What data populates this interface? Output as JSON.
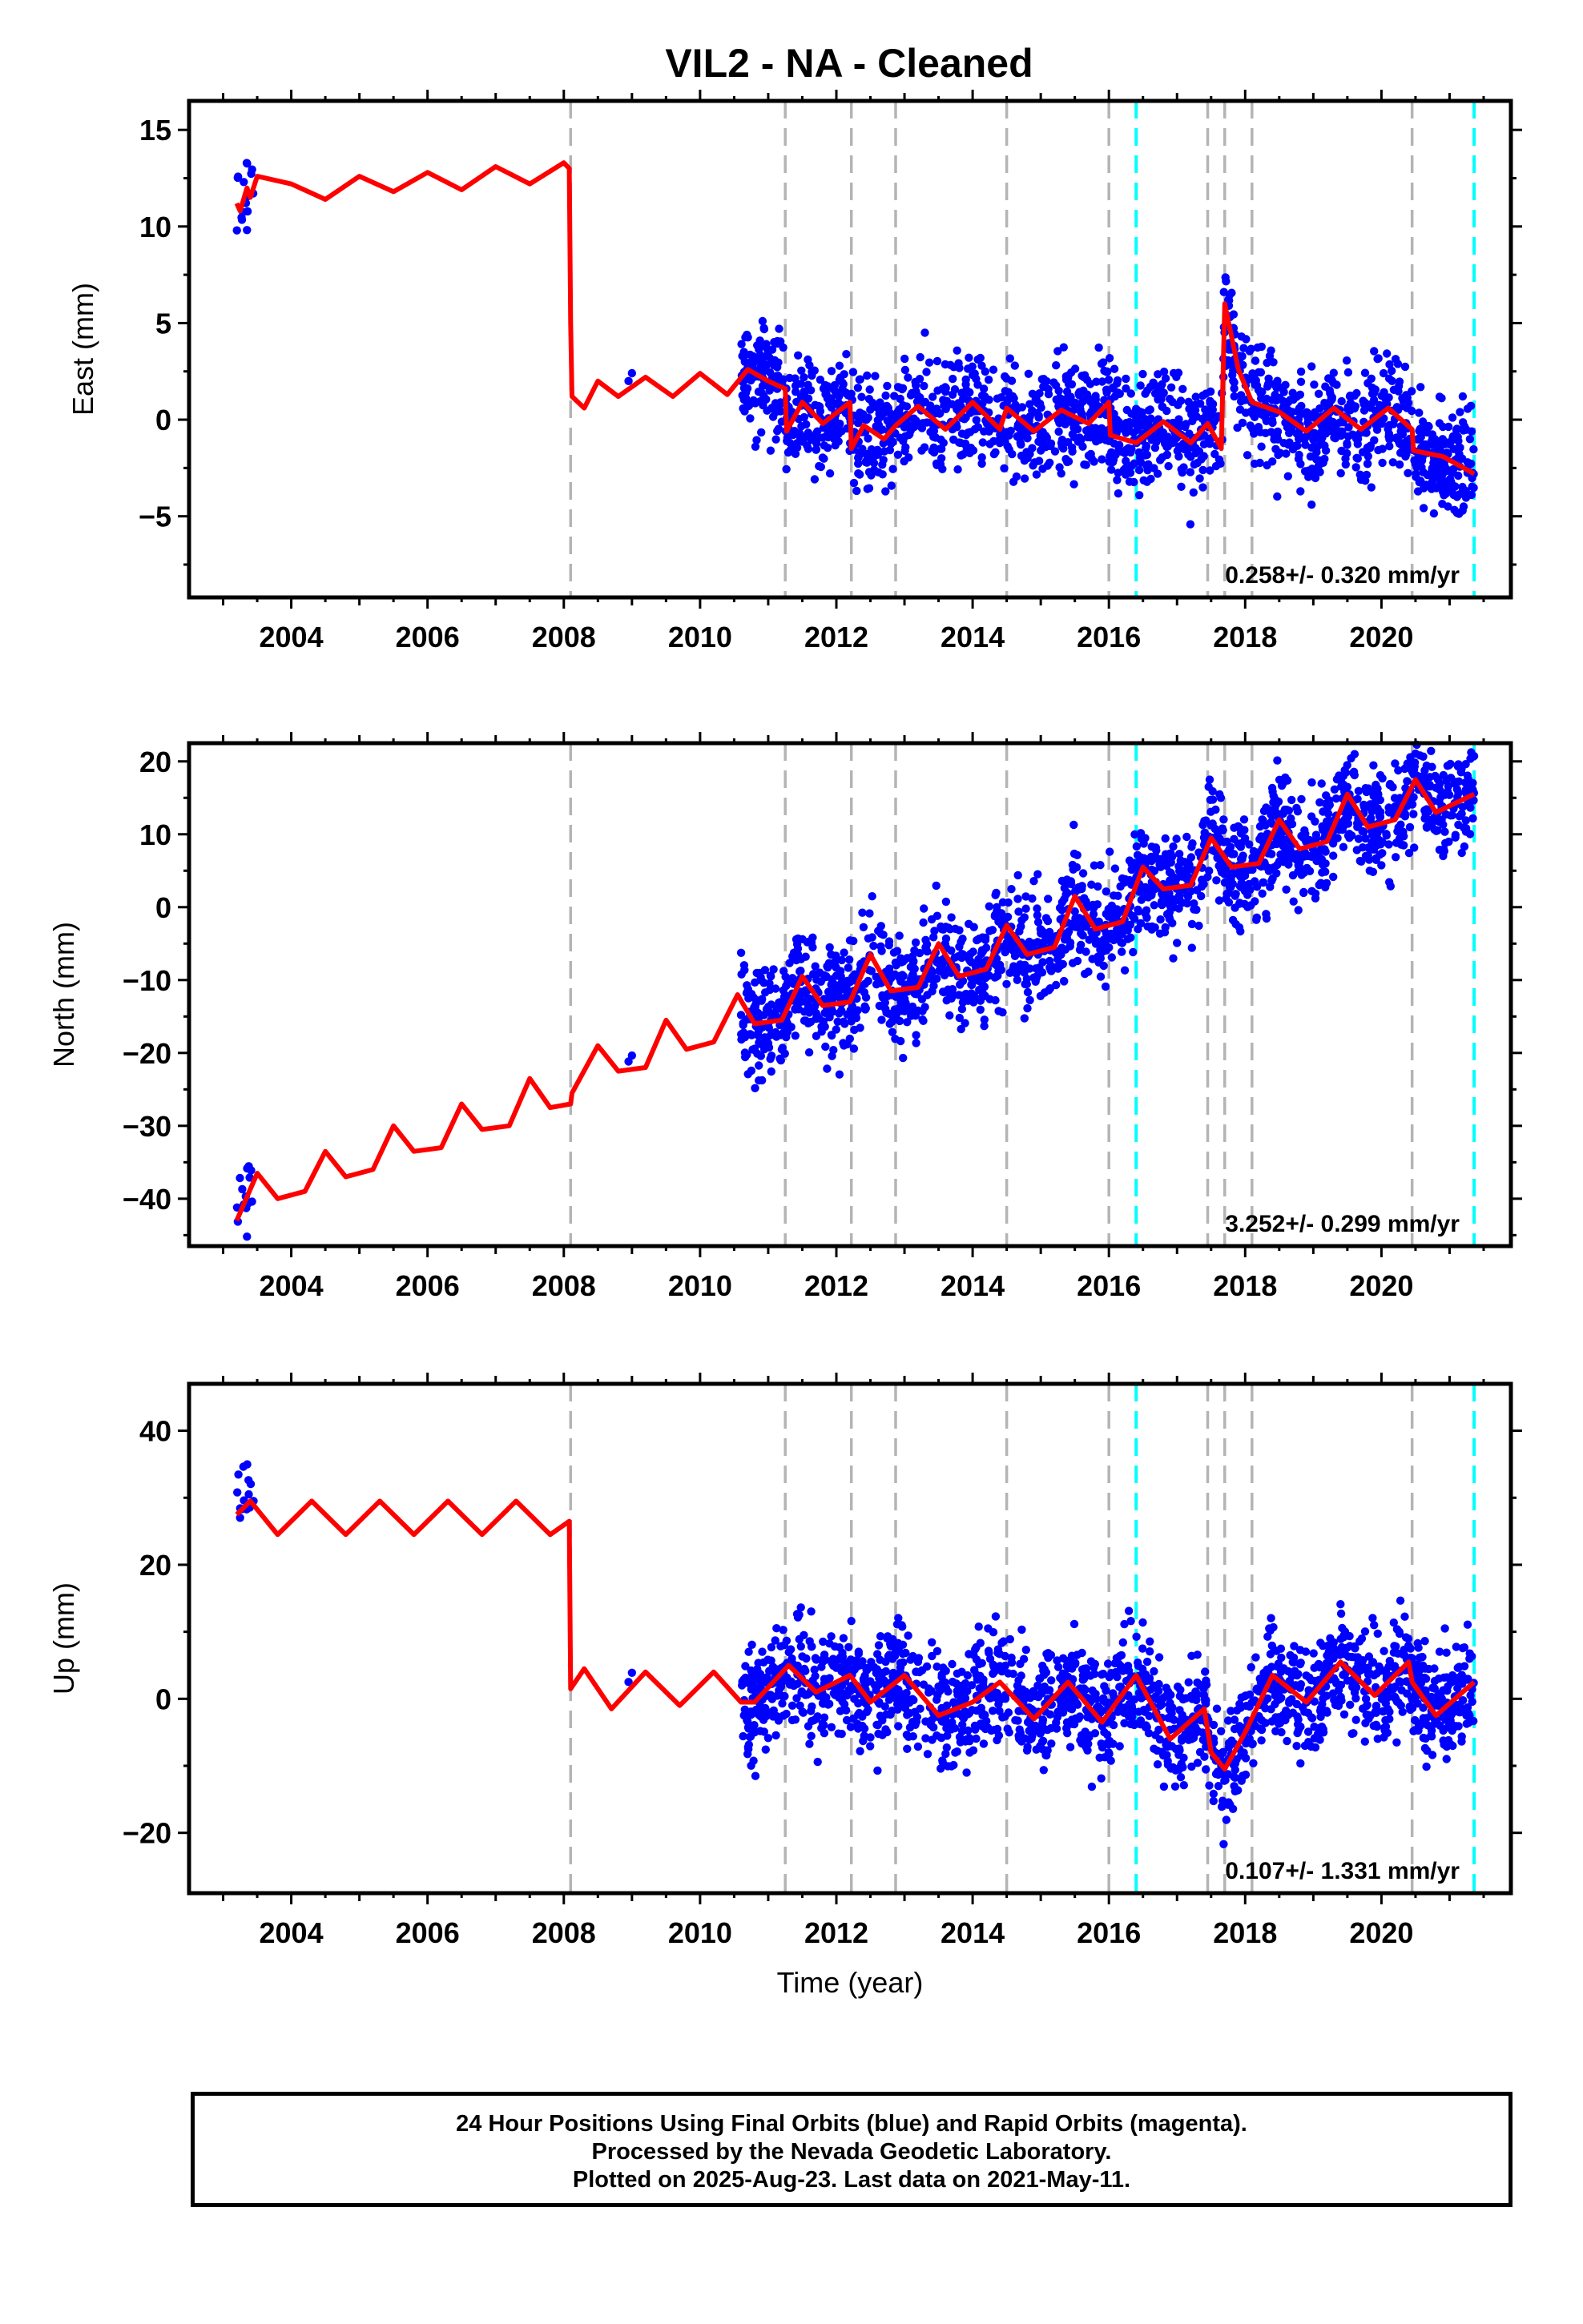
{
  "title": "VIL2  - NA - Cleaned",
  "colors": {
    "data_points": "#0000ff",
    "model_line": "#ff0000",
    "event_line_gray": "#b4b4b4",
    "event_line_cyan": "#00ffff",
    "frame": "#000000"
  },
  "footer": {
    "line1": "24 Hour Positions Using Final Orbits (blue) and Rapid Orbits (magenta).",
    "line2": "Processed by the Nevada Geodetic Laboratory.",
    "line3": "Plotted on 2025-Aug-23. Last data on 2021-May-11."
  },
  "chart_data": [
    {
      "type": "scatter",
      "panel": "east",
      "ylabel": "East (mm)",
      "xlabel": "",
      "xlim": [
        2002.5,
        2021.9
      ],
      "ylim": [
        -9.2,
        16.5
      ],
      "xticks": [
        2004,
        2006,
        2008,
        2010,
        2012,
        2014,
        2016,
        2018,
        2020
      ],
      "yticks": [
        -5,
        0,
        5,
        10,
        15
      ],
      "rate_text": "0.258+/- 0.320 mm/yr",
      "gray_event_lines": [
        2008.1,
        2011.25,
        2012.22,
        2012.87,
        2014.5,
        2016.0,
        2017.45,
        2017.7,
        2018.1,
        2020.45
      ],
      "cyan_event_lines": [
        2016.4,
        2021.36
      ],
      "series": [
        {
          "name": "",
          "values": [
            [
              2003.2,
              11.2
            ],
            [
              2003.25,
              10.8
            ],
            [
              2003.35,
              12.0
            ],
            [
              2003.4,
              11.5
            ],
            [
              2003.5,
              12.6
            ],
            [
              2004.0,
              12.2
            ],
            [
              2004.5,
              11.4
            ],
            [
              2005.0,
              12.6
            ],
            [
              2005.5,
              11.8
            ],
            [
              2006.0,
              12.8
            ],
            [
              2006.5,
              11.9
            ],
            [
              2007.0,
              13.1
            ],
            [
              2007.5,
              12.2
            ],
            [
              2008.0,
              13.3
            ],
            [
              2008.08,
              13.0
            ],
            [
              2008.1,
              5.0
            ],
            [
              2008.12,
              1.2
            ],
            [
              2008.3,
              0.6
            ],
            [
              2008.5,
              2.0
            ],
            [
              2008.8,
              1.2
            ],
            [
              2009.2,
              2.2
            ],
            [
              2009.6,
              1.2
            ],
            [
              2010.0,
              2.4
            ],
            [
              2010.4,
              1.3
            ],
            [
              2010.7,
              2.6
            ],
            [
              2011.0,
              2.0
            ],
            [
              2011.25,
              1.6
            ],
            [
              2011.27,
              -0.6
            ],
            [
              2011.5,
              0.9
            ],
            [
              2011.8,
              -0.2
            ],
            [
              2012.2,
              0.9
            ],
            [
              2012.22,
              -1.5
            ],
            [
              2012.4,
              -0.3
            ],
            [
              2012.7,
              -1.0
            ],
            [
              2012.87,
              -0.3
            ],
            [
              2013.2,
              0.7
            ],
            [
              2013.6,
              -0.5
            ],
            [
              2014.0,
              0.9
            ],
            [
              2014.4,
              -0.5
            ],
            [
              2014.5,
              0.6
            ],
            [
              2014.9,
              -0.6
            ],
            [
              2015.3,
              0.5
            ],
            [
              2015.7,
              -0.2
            ],
            [
              2016.0,
              0.9
            ],
            [
              2016.02,
              -0.8
            ],
            [
              2016.4,
              -1.2
            ],
            [
              2016.8,
              -0.1
            ],
            [
              2017.2,
              -1.2
            ],
            [
              2017.45,
              -0.2
            ],
            [
              2017.65,
              -1.5
            ],
            [
              2017.7,
              6.0
            ],
            [
              2017.9,
              2.6
            ],
            [
              2018.1,
              0.9
            ],
            [
              2018.5,
              0.4
            ],
            [
              2018.9,
              -0.6
            ],
            [
              2019.3,
              0.6
            ],
            [
              2019.7,
              -0.5
            ],
            [
              2020.1,
              0.6
            ],
            [
              2020.45,
              -0.5
            ],
            [
              2020.47,
              -1.6
            ],
            [
              2020.9,
              -1.9
            ],
            [
              2021.36,
              -2.8
            ]
          ]
        }
      ]
    },
    {
      "type": "scatter",
      "panel": "north",
      "ylabel": "North (mm)",
      "xlabel": "",
      "xlim": [
        2002.5,
        2021.9
      ],
      "ylim": [
        -46.5,
        22.5
      ],
      "xticks": [
        2004,
        2006,
        2008,
        2010,
        2012,
        2014,
        2016,
        2018,
        2020
      ],
      "yticks": [
        -40,
        -30,
        -20,
        -10,
        0,
        10,
        20
      ],
      "rate_text": "3.252+/- 0.299 mm/yr",
      "gray_event_lines": [
        2008.1,
        2011.25,
        2012.22,
        2012.87,
        2014.5,
        2016.0,
        2017.45,
        2017.7,
        2018.1,
        2020.45
      ],
      "cyan_event_lines": [
        2016.4,
        2021.36
      ],
      "series": [
        {
          "name": "",
          "values": [
            [
              2003.2,
              -43.0
            ],
            [
              2003.5,
              -36.5
            ],
            [
              2003.8,
              -40.0
            ],
            [
              2004.2,
              -39.0
            ],
            [
              2004.5,
              -33.5
            ],
            [
              2004.8,
              -37.0
            ],
            [
              2005.2,
              -36.0
            ],
            [
              2005.5,
              -30.0
            ],
            [
              2005.8,
              -33.5
            ],
            [
              2006.2,
              -33.0
            ],
            [
              2006.5,
              -27.0
            ],
            [
              2006.8,
              -30.5
            ],
            [
              2007.2,
              -30.0
            ],
            [
              2007.5,
              -23.5
            ],
            [
              2007.8,
              -27.5
            ],
            [
              2008.1,
              -27.0
            ],
            [
              2008.12,
              -25.5
            ],
            [
              2008.5,
              -19.0
            ],
            [
              2008.8,
              -22.5
            ],
            [
              2009.2,
              -22.0
            ],
            [
              2009.5,
              -15.5
            ],
            [
              2009.8,
              -19.5
            ],
            [
              2010.2,
              -18.5
            ],
            [
              2010.55,
              -12.0
            ],
            [
              2010.8,
              -16.0
            ],
            [
              2011.2,
              -15.5
            ],
            [
              2011.5,
              -9.5
            ],
            [
              2011.8,
              -13.5
            ],
            [
              2012.2,
              -13.0
            ],
            [
              2012.5,
              -6.5
            ],
            [
              2012.8,
              -11.5
            ],
            [
              2013.2,
              -11.0
            ],
            [
              2013.5,
              -5.0
            ],
            [
              2013.8,
              -9.5
            ],
            [
              2014.2,
              -8.5
            ],
            [
              2014.5,
              -2.5
            ],
            [
              2014.8,
              -6.5
            ],
            [
              2015.2,
              -5.5
            ],
            [
              2015.5,
              1.5
            ],
            [
              2015.8,
              -3.0
            ],
            [
              2016.2,
              -2.0
            ],
            [
              2016.5,
              5.5
            ],
            [
              2016.8,
              2.5
            ],
            [
              2017.2,
              3.0
            ],
            [
              2017.5,
              9.5
            ],
            [
              2017.8,
              5.5
            ],
            [
              2018.2,
              6.0
            ],
            [
              2018.5,
              12.0
            ],
            [
              2018.8,
              8.0
            ],
            [
              2019.2,
              9.0
            ],
            [
              2019.5,
              15.5
            ],
            [
              2019.8,
              11.0
            ],
            [
              2020.2,
              12.0
            ],
            [
              2020.5,
              17.5
            ],
            [
              2020.8,
              13.0
            ],
            [
              2021.36,
              15.5
            ]
          ]
        }
      ]
    },
    {
      "type": "scatter",
      "panel": "up",
      "ylabel": "Up (mm)",
      "xlabel": "Time (year)",
      "xlim": [
        2002.5,
        2021.9
      ],
      "ylim": [
        -29.0,
        47.0
      ],
      "xticks": [
        2004,
        2006,
        2008,
        2010,
        2012,
        2014,
        2016,
        2018,
        2020
      ],
      "yticks": [
        -20,
        0,
        20,
        40
      ],
      "rate_text": "0.107+/- 1.331 mm/yr",
      "gray_event_lines": [
        2008.1,
        2011.25,
        2012.22,
        2012.87,
        2014.5,
        2016.0,
        2017.45,
        2017.7,
        2018.1,
        2020.45
      ],
      "cyan_event_lines": [
        2016.4,
        2021.36
      ],
      "series": [
        {
          "name": "",
          "values": [
            [
              2003.2,
              27.5
            ],
            [
              2003.4,
              29.5
            ],
            [
              2003.8,
              24.5
            ],
            [
              2004.3,
              29.5
            ],
            [
              2004.8,
              24.5
            ],
            [
              2005.3,
              29.5
            ],
            [
              2005.8,
              24.5
            ],
            [
              2006.3,
              29.5
            ],
            [
              2006.8,
              24.5
            ],
            [
              2007.3,
              29.5
            ],
            [
              2007.8,
              24.5
            ],
            [
              2008.08,
              26.5
            ],
            [
              2008.1,
              1.5
            ],
            [
              2008.3,
              4.5
            ],
            [
              2008.7,
              -1.5
            ],
            [
              2009.2,
              4.0
            ],
            [
              2009.7,
              -1.0
            ],
            [
              2010.2,
              4.0
            ],
            [
              2010.6,
              -0.5
            ],
            [
              2010.8,
              -0.5
            ],
            [
              2011.3,
              5.0
            ],
            [
              2011.7,
              1.0
            ],
            [
              2012.2,
              3.5
            ],
            [
              2012.5,
              -0.5
            ],
            [
              2013.0,
              3.5
            ],
            [
              2013.5,
              -2.5
            ],
            [
              2014.0,
              -0.5
            ],
            [
              2014.4,
              2.5
            ],
            [
              2014.9,
              -3.0
            ],
            [
              2015.4,
              2.5
            ],
            [
              2015.9,
              -3.5
            ],
            [
              2016.4,
              3.5
            ],
            [
              2016.9,
              -6.0
            ],
            [
              2017.4,
              -1.5
            ],
            [
              2017.5,
              -8.0
            ],
            [
              2017.7,
              -10.5
            ],
            [
              2018.0,
              -5.0
            ],
            [
              2018.4,
              3.5
            ],
            [
              2018.9,
              -0.5
            ],
            [
              2019.4,
              5.5
            ],
            [
              2019.9,
              0.5
            ],
            [
              2020.4,
              5.5
            ],
            [
              2020.45,
              2.5
            ],
            [
              2020.8,
              -2.5
            ],
            [
              2021.36,
              2.5
            ]
          ]
        }
      ]
    }
  ]
}
